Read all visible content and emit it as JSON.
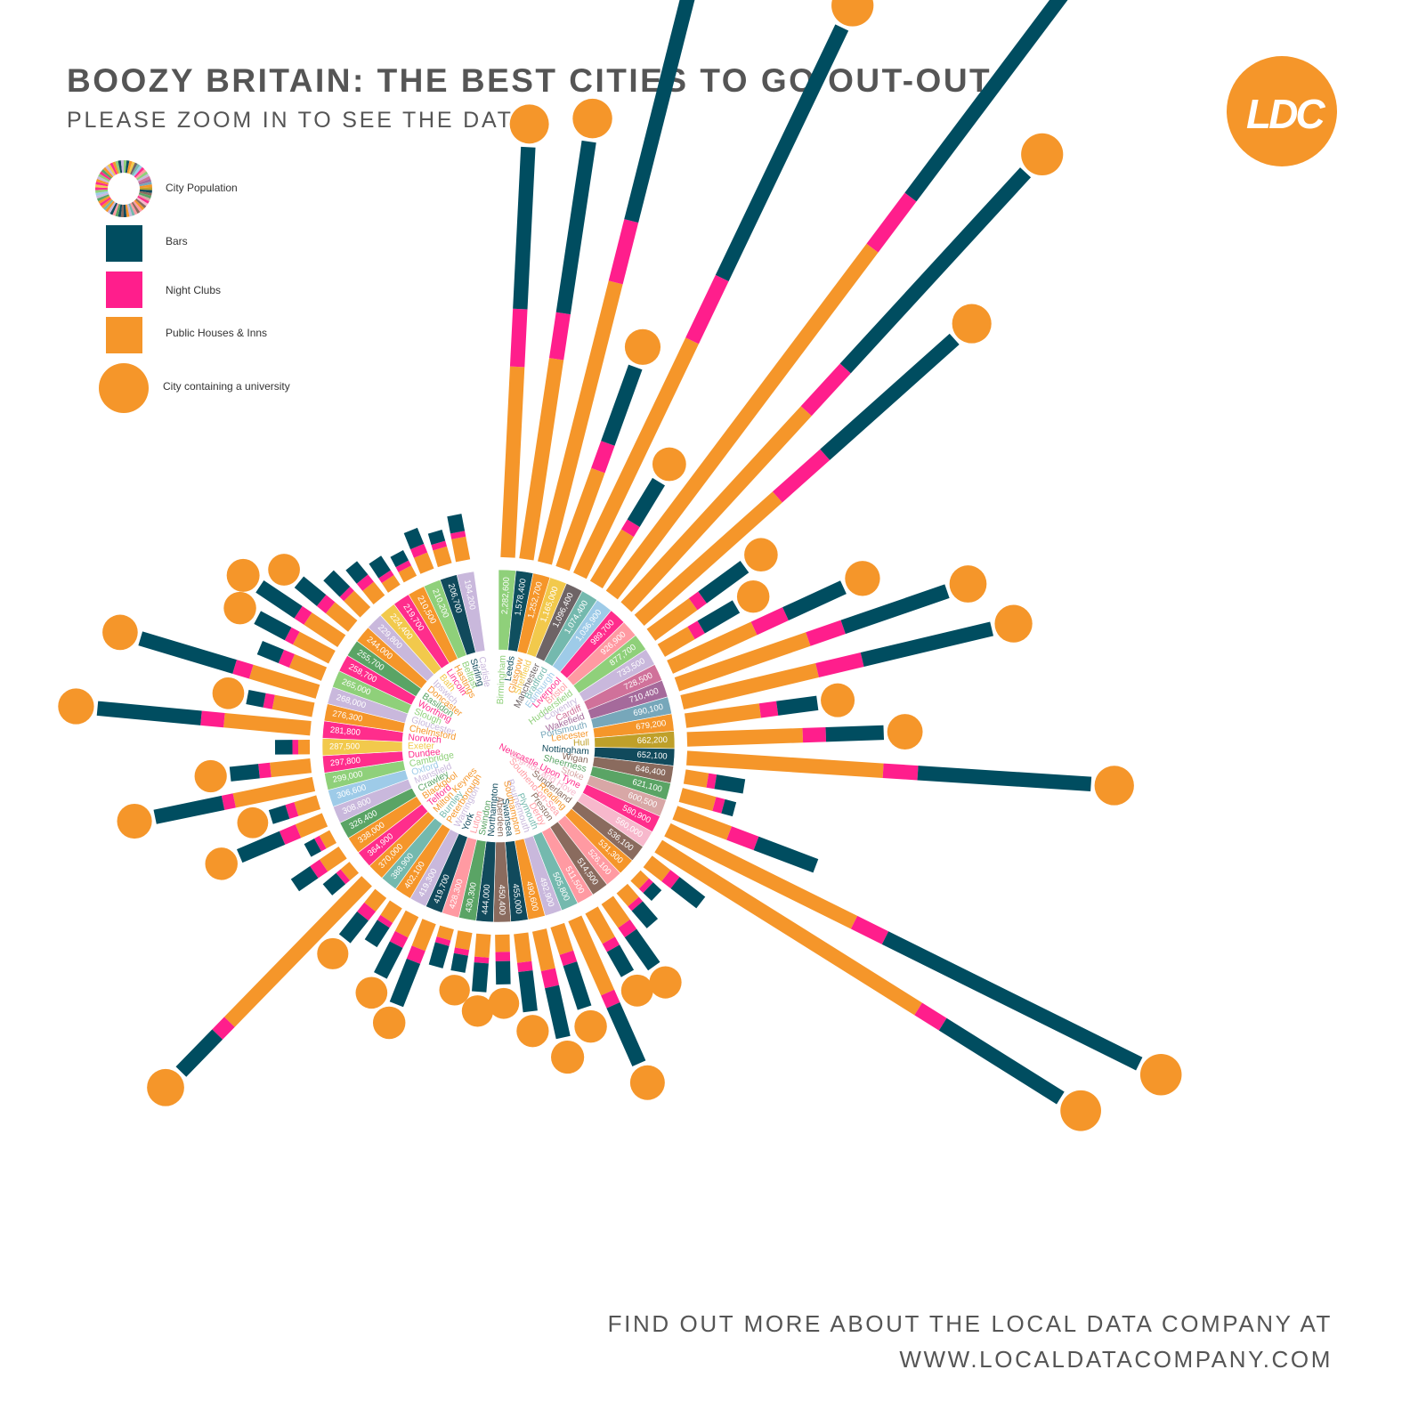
{
  "header": {
    "title": "BOOZY BRITAIN: THE BEST CITIES TO GO OUT-OUT",
    "subtitle": "PLEASE ZOOM IN TO SEE THE DATA"
  },
  "logo": {
    "text": "LDC",
    "color": "#f5962a"
  },
  "legend": {
    "population_label": "City Population",
    "bars_label": "Bars",
    "nightclubs_label": "Night Clubs",
    "pubs_label": "Public Houses & Inns",
    "university_label": "City containing a university"
  },
  "footer": {
    "line1": "FIND OUT MORE ABOUT THE LOCAL DATA COMPANY AT",
    "line2": "WWW.LOCALDATACOMPANY.COM"
  },
  "colors": {
    "bars": "#004d60",
    "nightclubs": "#ff1e8c",
    "pubs": "#f5962a",
    "university": "#f5962a",
    "ring_border": "#ffffff"
  },
  "chart_data": {
    "type": "radial-stacked-bar",
    "title": "BOOZY BRITAIN: THE BEST CITIES TO GO OUT-OUT",
    "series": [
      {
        "name": "Bars",
        "key": "bars"
      },
      {
        "name": "Night Clubs",
        "key": "clubs"
      },
      {
        "name": "Public Houses & Inns",
        "key": "pubs"
      }
    ],
    "cities": [
      {
        "name": "Birmingham",
        "population": "2,282,600",
        "bars": 140,
        "clubs": 50,
        "pubs": 165,
        "uni": true,
        "color": "#8fd07a"
      },
      {
        "name": "Leeds",
        "population": "1,578,400",
        "bars": 150,
        "clubs": 40,
        "pubs": 175,
        "uni": true,
        "color": "#0f4f5f"
      },
      {
        "name": "Glasgow",
        "population": "1,252,700",
        "bars": 270,
        "clubs": 55,
        "pubs": 250,
        "uni": true,
        "color": "#f5962a"
      },
      {
        "name": "Sheffield",
        "population": "1,165,000",
        "bars": 70,
        "clubs": 25,
        "pubs": 90,
        "uni": true,
        "color": "#f2c94c"
      },
      {
        "name": "Manchester",
        "population": "1,096,400",
        "bars": 240,
        "clubs": 60,
        "pubs": 225,
        "uni": true,
        "color": "#6e6466"
      },
      {
        "name": "Bradford",
        "population": "1,074,400",
        "bars": 42,
        "clubs": 10,
        "pubs": 52,
        "uni": true,
        "color": "#74b9ae"
      },
      {
        "name": "Edinburgh",
        "population": "1,036,900",
        "bars": 240,
        "clubs": 55,
        "pubs": 375,
        "uni": true,
        "color": "#9ecbe8"
      },
      {
        "name": "Liverpool",
        "population": "989,700",
        "bars": 230,
        "clubs": 50,
        "pubs": 230,
        "uni": true,
        "color": "#ff2d8c"
      },
      {
        "name": "Bristol",
        "population": "926,900",
        "bars": 150,
        "clubs": 55,
        "pubs": 160,
        "uni": true,
        "color": "#ff9aa2"
      },
      {
        "name": "Huddersfield",
        "population": "877,700",
        "bars": 45,
        "clubs": 10,
        "pubs": 45,
        "uni": true,
        "color": "#8fd07a"
      },
      {
        "name": "Coventry",
        "population": "733,500",
        "bars": 35,
        "clubs": 10,
        "pubs": 30,
        "uni": true,
        "color": "#c9b8dc"
      },
      {
        "name": "Cardiff",
        "population": "728,500",
        "bars": 55,
        "clubs": 30,
        "pubs": 80,
        "uni": true,
        "color": "#d0719a"
      },
      {
        "name": "Wakefield",
        "population": "710,400",
        "bars": 95,
        "clubs": 32,
        "pubs": 120,
        "uni": true,
        "color": "#a56a9b"
      },
      {
        "name": "Portsmouth",
        "population": "690,100",
        "bars": 115,
        "clubs": 40,
        "pubs": 120,
        "uni": true,
        "color": "#77a7ba"
      },
      {
        "name": "Leicester",
        "population": "679,200",
        "bars": 35,
        "clubs": 15,
        "pubs": 65,
        "uni": true,
        "color": "#f5962a"
      },
      {
        "name": "Hull",
        "population": "662,200",
        "bars": 50,
        "clubs": 20,
        "pubs": 100,
        "uni": true,
        "color": "#bfa02a"
      },
      {
        "name": "Nottingham",
        "population": "652,100",
        "bars": 150,
        "clubs": 30,
        "pubs": 170,
        "uni": true,
        "color": "#114a5c"
      },
      {
        "name": "Wigan",
        "population": "646,400",
        "bars": 25,
        "clubs": 7,
        "pubs": 20,
        "uni": false,
        "color": "#8a6b5e"
      },
      {
        "name": "Sheerness",
        "population": "621,100",
        "bars": 10,
        "clubs": 8,
        "pubs": 30,
        "uni": false,
        "color": "#5aa465"
      },
      {
        "name": "Stoke",
        "population": "600,500",
        "bars": 55,
        "clubs": 25,
        "pubs": 50,
        "uni": false,
        "color": "#d8a7a6"
      },
      {
        "name": "Newcastle Upon Tyne",
        "population": "580,900",
        "bars": 245,
        "clubs": 30,
        "pubs": 180,
        "uni": true,
        "color": "#ff2d8c"
      },
      {
        "name": "Brighton and Hove",
        "population": "560,000",
        "bars": 120,
        "clubs": 25,
        "pubs": 265,
        "uni": true,
        "color": "#f7b8cc"
      },
      {
        "name": "Sunderland",
        "population": "536,100",
        "bars": 28,
        "clubs": 10,
        "pubs": 20,
        "uni": false,
        "color": "#8a6b5e"
      },
      {
        "name": "Reading",
        "population": "531,300",
        "bars": 10,
        "clubs": 5,
        "pubs": 10,
        "uni": false,
        "color": "#f5962a"
      },
      {
        "name": "Southend-on-Sea",
        "population": "526,100",
        "bars": 20,
        "clubs": 5,
        "pubs": 15,
        "uni": false,
        "color": "#ff9aa2"
      },
      {
        "name": "Preston",
        "population": "514,500",
        "bars": 35,
        "clubs": 10,
        "pubs": 25,
        "uni": true,
        "color": "#8a6b5e"
      },
      {
        "name": "Derby",
        "population": "511,500",
        "bars": 25,
        "clubs": 8,
        "pubs": 30,
        "uni": true,
        "color": "#ff9aa2"
      },
      {
        "name": "Plymouth",
        "population": "505,800",
        "bars": 55,
        "clubs": 12,
        "pubs": 70,
        "uni": true,
        "color": "#74b9ae"
      },
      {
        "name": "Bournemouth",
        "population": "492,900",
        "bars": 40,
        "clubs": 10,
        "pubs": 25,
        "uni": true,
        "color": "#c9b8dc"
      },
      {
        "name": "Southampton",
        "population": "490,600",
        "bars": 45,
        "clubs": 15,
        "pubs": 35,
        "uni": true,
        "color": "#f5962a"
      },
      {
        "name": "Swansea",
        "population": "455,000",
        "bars": 35,
        "clubs": 8,
        "pubs": 25,
        "uni": true,
        "color": "#114a5c"
      },
      {
        "name": "Aberdeen",
        "population": "450,400",
        "bars": 20,
        "clubs": 8,
        "pubs": 15,
        "uni": true,
        "color": "#8a6b5e"
      },
      {
        "name": "Northampton",
        "population": "444,000",
        "bars": 25,
        "clubs": 5,
        "pubs": 20,
        "uni": true,
        "color": "#114a5c"
      },
      {
        "name": "Swindon",
        "population": "430,300",
        "bars": 15,
        "clubs": 5,
        "pubs": 15,
        "uni": true,
        "color": "#5aa465"
      },
      {
        "name": "Luton",
        "population": "428,300",
        "bars": 20,
        "clubs": 5,
        "pubs": 10,
        "uni": false,
        "color": "#ff9aa2"
      },
      {
        "name": "York",
        "population": "419,700",
        "bars": 40,
        "clubs": 12,
        "pubs": 25,
        "uni": true,
        "color": "#114a5c"
      },
      {
        "name": "Warrington",
        "population": "419,300",
        "bars": 30,
        "clubs": 10,
        "pubs": 20,
        "uni": true,
        "color": "#c9b8dc"
      },
      {
        "name": "Peterborough",
        "population": "402,100",
        "bars": 20,
        "clubs": 5,
        "pubs": 15,
        "uni": false,
        "color": "#f5962a"
      },
      {
        "name": "Burnley",
        "population": "388,900",
        "bars": 25,
        "clubs": 10,
        "pubs": 15,
        "uni": true,
        "color": "#74b9ae"
      },
      {
        "name": "Milton Keynes",
        "population": "370,000",
        "bars": 45,
        "clubs": 15,
        "pubs": 170,
        "uni": true,
        "color": "#f5962a"
      },
      {
        "name": "Telford",
        "population": "364,900",
        "bars": 15,
        "clubs": 5,
        "pubs": 10,
        "uni": false,
        "color": "#ff2d8c"
      },
      {
        "name": "Blackpool",
        "population": "338,000",
        "bars": 20,
        "clubs": 10,
        "pubs": 20,
        "uni": false,
        "color": "#f5962a"
      },
      {
        "name": "Crawley",
        "population": "326,400",
        "bars": 10,
        "clubs": 5,
        "pubs": 10,
        "uni": false,
        "color": "#5aa465"
      },
      {
        "name": "Mansfield",
        "population": "308,800",
        "bars": 40,
        "clubs": 15,
        "pubs": 25,
        "uni": true,
        "color": "#c9b8dc"
      },
      {
        "name": "Oxford",
        "population": "306,600",
        "bars": 15,
        "clubs": 8,
        "pubs": 20,
        "uni": true,
        "color": "#9ecbe8"
      },
      {
        "name": "Cambridge",
        "population": "299,000",
        "bars": 60,
        "clubs": 10,
        "pubs": 70,
        "uni": true,
        "color": "#8fd07a"
      },
      {
        "name": "Dundee",
        "population": "297,800",
        "bars": 25,
        "clubs": 10,
        "pubs": 35,
        "uni": true,
        "color": "#ff2d8c"
      },
      {
        "name": "Exeter",
        "population": "287,500",
        "bars": 15,
        "clubs": 5,
        "pubs": 10,
        "uni": false,
        "color": "#f2c94c"
      },
      {
        "name": "Norwich",
        "population": "281,800",
        "bars": 90,
        "clubs": 20,
        "pubs": 75,
        "uni": true,
        "color": "#ff2d8c"
      },
      {
        "name": "Chelmsford",
        "population": "276,300",
        "bars": 15,
        "clubs": 8,
        "pubs": 35,
        "uni": true,
        "color": "#f5962a"
      },
      {
        "name": "Gloucester",
        "population": "268,000",
        "bars": 85,
        "clubs": 15,
        "pubs": 60,
        "uni": true,
        "color": "#c9b8dc"
      },
      {
        "name": "Slough",
        "population": "265,000",
        "bars": 20,
        "clubs": 10,
        "pubs": 30,
        "uni": false,
        "color": "#8fd07a"
      },
      {
        "name": "Worthing",
        "population": "258,700",
        "bars": 30,
        "clubs": 8,
        "pubs": 35,
        "uni": true,
        "color": "#ff2d8c"
      },
      {
        "name": "Basildon",
        "population": "255,700",
        "bars": 40,
        "clubs": 10,
        "pubs": 35,
        "uni": true,
        "color": "#5aa465"
      },
      {
        "name": "Doncaster",
        "population": "244,000",
        "bars": 25,
        "clubs": 10,
        "pubs": 25,
        "uni": true,
        "color": "#f5962a"
      },
      {
        "name": "Ipswich",
        "population": "229,800",
        "bars": 20,
        "clubs": 5,
        "pubs": 20,
        "uni": false,
        "color": "#c9b8dc"
      },
      {
        "name": "Bath",
        "population": "224,400",
        "bars": 15,
        "clubs": 8,
        "pubs": 15,
        "uni": false,
        "color": "#f2c94c"
      },
      {
        "name": "Lincoln",
        "population": "219,700",
        "bars": 15,
        "clubs": 5,
        "pubs": 10,
        "uni": false,
        "color": "#ff2d8c"
      },
      {
        "name": "Hastings",
        "population": "210,500",
        "bars": 10,
        "clubs": 5,
        "pubs": 10,
        "uni": false,
        "color": "#f5962a"
      },
      {
        "name": "Belfast",
        "population": "210,200",
        "bars": 15,
        "clubs": 8,
        "pubs": 15,
        "uni": false,
        "color": "#8fd07a"
      },
      {
        "name": "Stirling",
        "population": "206,700",
        "bars": 10,
        "clubs": 5,
        "pubs": 15,
        "uni": false,
        "color": "#114a5c"
      },
      {
        "name": "Carlisle",
        "population": "194,200",
        "bars": 15,
        "clubs": 5,
        "pubs": 20,
        "uni": false,
        "color": "#c9b8dc"
      }
    ]
  }
}
